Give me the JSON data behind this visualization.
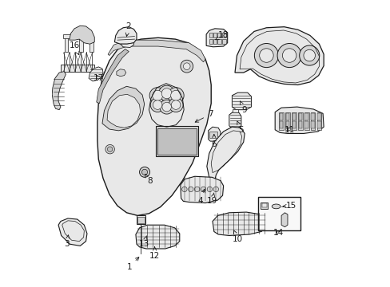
{
  "bg_color": "#ffffff",
  "lc": "#1a1a1a",
  "gray_light": "#e8e8e8",
  "gray_mid": "#d4d4d4",
  "gray_dark": "#c0c0c0",
  "font_size": 7.5,
  "callouts": {
    "1": {
      "tp": [
        0.27,
        0.068
      ],
      "ae": [
        0.31,
        0.11
      ]
    },
    "2": {
      "tp": [
        0.267,
        0.91
      ],
      "ae": [
        0.258,
        0.865
      ]
    },
    "3": {
      "tp": [
        0.052,
        0.148
      ],
      "ae": [
        0.058,
        0.19
      ]
    },
    "4": {
      "tp": [
        0.518,
        0.3
      ],
      "ae": [
        0.535,
        0.35
      ]
    },
    "5": {
      "tp": [
        0.66,
        0.548
      ],
      "ae": [
        0.645,
        0.58
      ]
    },
    "6": {
      "tp": [
        0.565,
        0.498
      ],
      "ae": [
        0.565,
        0.535
      ]
    },
    "7": {
      "tp": [
        0.552,
        0.602
      ],
      "ae": [
        0.49,
        0.57
      ]
    },
    "8": {
      "tp": [
        0.34,
        0.368
      ],
      "ae": [
        0.323,
        0.395
      ]
    },
    "9": {
      "tp": [
        0.671,
        0.618
      ],
      "ae": [
        0.655,
        0.65
      ]
    },
    "10": {
      "tp": [
        0.648,
        0.165
      ],
      "ae": [
        0.63,
        0.205
      ]
    },
    "11": {
      "tp": [
        0.83,
        0.548
      ],
      "ae": [
        0.81,
        0.56
      ]
    },
    "12": {
      "tp": [
        0.358,
        0.108
      ],
      "ae": [
        0.358,
        0.148
      ]
    },
    "13": {
      "tp": [
        0.32,
        0.148
      ],
      "ae": [
        0.33,
        0.178
      ]
    },
    "14": {
      "tp": [
        0.79,
        0.188
      ],
      "ae": [
        0.775,
        0.202
      ]
    },
    "15": {
      "tp": [
        0.835,
        0.282
      ],
      "ae": [
        0.803,
        0.28
      ]
    },
    "16": {
      "tp": [
        0.078,
        0.842
      ],
      "ae": [
        0.095,
        0.808
      ]
    },
    "17": {
      "tp": [
        0.162,
        0.728
      ],
      "ae": [
        0.148,
        0.748
      ]
    },
    "18": {
      "tp": [
        0.598,
        0.878
      ],
      "ae": [
        0.568,
        0.862
      ]
    },
    "19": {
      "tp": [
        0.558,
        0.298
      ],
      "ae": [
        0.565,
        0.328
      ]
    }
  }
}
